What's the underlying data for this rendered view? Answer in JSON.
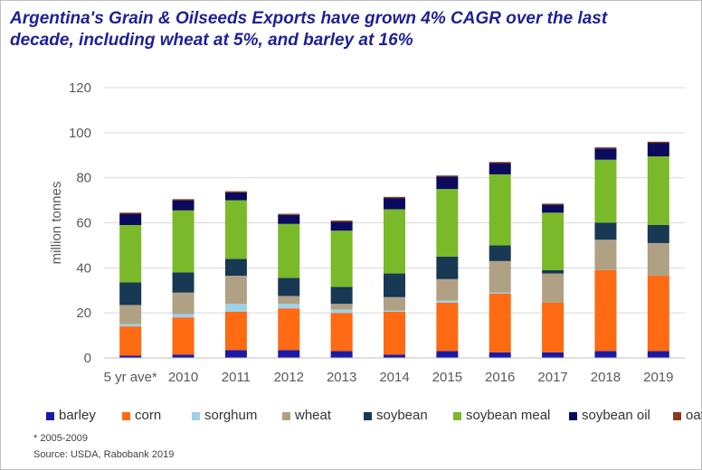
{
  "title": "Argentina's Grain & Oilseeds Exports have grown 4% CAGR over the last decade, including wheat at 5%, and barley at 16%",
  "footnote": "* 2005-2009",
  "source": "Source: USDA, Rabobank 2019",
  "chart_data": {
    "type": "bar",
    "stacked": true,
    "title": "Argentina's Grain & Oilseeds Exports have grown 4% CAGR over the last decade, including wheat at 5%, and barley at 16%",
    "ylabel": "million tonnes",
    "xlabel": "",
    "ylim": [
      0,
      120
    ],
    "yticks": [
      "0",
      "20",
      "40",
      "60",
      "80",
      "100",
      "120"
    ],
    "grid": true,
    "legend_position": "bottom",
    "categories": [
      "5 yr ave*",
      "2010",
      "2011",
      "2012",
      "2013",
      "2014",
      "2015",
      "2016",
      "2017",
      "2018",
      "2019"
    ],
    "series": [
      {
        "name": "barley",
        "color": "#1a1aa6",
        "values": [
          1.0,
          1.5,
          3.5,
          3.5,
          3.0,
          1.5,
          3.0,
          2.5,
          2.5,
          3.0,
          3.0
        ]
      },
      {
        "name": "corn",
        "color": "#ff6a13",
        "values": [
          13.0,
          16.5,
          17.0,
          18.5,
          17.0,
          19.0,
          21.5,
          26.0,
          22.0,
          36.0,
          33.5
        ]
      },
      {
        "name": "sorghum",
        "color": "#9ed1ea",
        "values": [
          1.0,
          1.5,
          3.5,
          2.0,
          1.5,
          0.5,
          1.0,
          0.5,
          0.0,
          0.0,
          0.0
        ]
      },
      {
        "name": "wheat",
        "color": "#b0a184",
        "values": [
          8.5,
          9.5,
          12.5,
          3.5,
          2.5,
          6.0,
          9.5,
          14.0,
          13.0,
          13.5,
          14.5
        ]
      },
      {
        "name": "soybean",
        "color": "#183854",
        "values": [
          10.0,
          9.0,
          7.5,
          8.0,
          7.5,
          10.5,
          10.0,
          7.0,
          1.5,
          7.5,
          8.0
        ]
      },
      {
        "name": "soybean meal",
        "color": "#7ab929",
        "values": [
          25.5,
          27.5,
          26.0,
          24.0,
          25.0,
          28.5,
          30.0,
          31.5,
          25.5,
          28.0,
          30.5
        ]
      },
      {
        "name": "soybean oil",
        "color": "#0b0b5e",
        "values": [
          5.0,
          4.5,
          3.5,
          4.0,
          4.0,
          5.0,
          5.5,
          5.0,
          3.5,
          5.0,
          6.0
        ]
      },
      {
        "name": "oats",
        "color": "#8b3a1a",
        "values": [
          0.5,
          0.5,
          0.5,
          0.5,
          0.5,
          0.5,
          0.5,
          0.5,
          0.5,
          0.5,
          0.5
        ]
      }
    ]
  }
}
